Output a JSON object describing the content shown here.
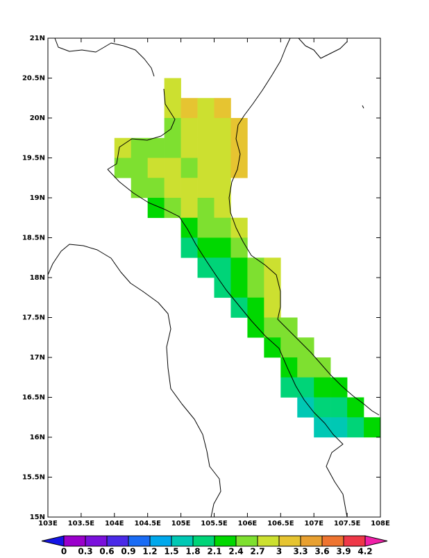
{
  "chart_data": {
    "type": "gridmap",
    "xlim": [
      103,
      108
    ],
    "ylim": [
      15,
      21
    ],
    "xticks": [
      {
        "value": 103,
        "label": "103E"
      },
      {
        "value": 103.5,
        "label": "103.5E"
      },
      {
        "value": 104,
        "label": "104E"
      },
      {
        "value": 104.5,
        "label": "104.5E"
      },
      {
        "value": 105,
        "label": "105E"
      },
      {
        "value": 105.5,
        "label": "105.5E"
      },
      {
        "value": 106,
        "label": "106E"
      },
      {
        "value": 106.5,
        "label": "106.5E"
      },
      {
        "value": 107,
        "label": "107E"
      },
      {
        "value": 107.5,
        "label": "107.5E"
      },
      {
        "value": 108,
        "label": "108E"
      }
    ],
    "yticks": [
      {
        "value": 15,
        "label": "15N"
      },
      {
        "value": 15.5,
        "label": "15.5N"
      },
      {
        "value": 16,
        "label": "16N"
      },
      {
        "value": 16.5,
        "label": "16.5N"
      },
      {
        "value": 17,
        "label": "17N"
      },
      {
        "value": 17.5,
        "label": "17.5N"
      },
      {
        "value": 18,
        "label": "18N"
      },
      {
        "value": 18.5,
        "label": "18.5N"
      },
      {
        "value": 19,
        "label": "19N"
      },
      {
        "value": 19.5,
        "label": "19.5N"
      },
      {
        "value": 20,
        "label": "20N"
      },
      {
        "value": 20.5,
        "label": "20.5N"
      },
      {
        "value": 21,
        "label": "21N"
      }
    ],
    "cells": [
      [
        104.75,
        20.25,
        2.85
      ],
      [
        104.75,
        20.0,
        2.85
      ],
      [
        105.0,
        20.0,
        3.15
      ],
      [
        105.25,
        20.0,
        2.85
      ],
      [
        105.5,
        20.0,
        3.15
      ],
      [
        104.75,
        19.75,
        2.55
      ],
      [
        105.0,
        19.75,
        2.85
      ],
      [
        105.25,
        19.75,
        2.85
      ],
      [
        105.5,
        19.75,
        2.85
      ],
      [
        105.75,
        19.75,
        3.15
      ],
      [
        104.0,
        19.5,
        2.85
      ],
      [
        104.25,
        19.5,
        2.55
      ],
      [
        104.5,
        19.5,
        2.55
      ],
      [
        104.75,
        19.5,
        2.55
      ],
      [
        105.0,
        19.5,
        2.85
      ],
      [
        105.25,
        19.5,
        2.85
      ],
      [
        105.5,
        19.5,
        2.85
      ],
      [
        105.75,
        19.5,
        3.15
      ],
      [
        104.0,
        19.25,
        2.55
      ],
      [
        104.25,
        19.25,
        2.55
      ],
      [
        104.5,
        19.25,
        2.85
      ],
      [
        104.75,
        19.25,
        2.85
      ],
      [
        105.0,
        19.25,
        2.55
      ],
      [
        105.25,
        19.25,
        2.85
      ],
      [
        105.5,
        19.25,
        2.85
      ],
      [
        105.75,
        19.25,
        3.15
      ],
      [
        104.25,
        19.0,
        2.55
      ],
      [
        104.5,
        19.0,
        2.55
      ],
      [
        104.75,
        19.0,
        2.85
      ],
      [
        105.0,
        19.0,
        2.85
      ],
      [
        105.25,
        19.0,
        2.85
      ],
      [
        105.5,
        19.0,
        2.85
      ],
      [
        104.5,
        18.75,
        2.25
      ],
      [
        104.75,
        18.75,
        2.55
      ],
      [
        105.0,
        18.75,
        2.85
      ],
      [
        105.25,
        18.75,
        2.55
      ],
      [
        105.5,
        18.75,
        2.85
      ],
      [
        105.0,
        18.5,
        2.25
      ],
      [
        105.25,
        18.5,
        2.55
      ],
      [
        105.5,
        18.5,
        2.55
      ],
      [
        105.75,
        18.5,
        2.85
      ],
      [
        105.0,
        18.25,
        1.95
      ],
      [
        105.25,
        18.25,
        2.25
      ],
      [
        105.5,
        18.25,
        2.25
      ],
      [
        105.75,
        18.25,
        2.55
      ],
      [
        105.25,
        18.0,
        1.95
      ],
      [
        105.5,
        18.0,
        1.95
      ],
      [
        105.75,
        18.0,
        2.25
      ],
      [
        106.0,
        18.0,
        2.55
      ],
      [
        106.25,
        18.0,
        2.85
      ],
      [
        105.5,
        17.75,
        1.95
      ],
      [
        105.75,
        17.75,
        2.25
      ],
      [
        106.0,
        17.75,
        2.55
      ],
      [
        106.25,
        17.75,
        2.85
      ],
      [
        105.75,
        17.5,
        1.95
      ],
      [
        106.0,
        17.5,
        2.25
      ],
      [
        106.25,
        17.5,
        2.85
      ],
      [
        106.0,
        17.25,
        2.25
      ],
      [
        106.25,
        17.25,
        2.55
      ],
      [
        106.5,
        17.25,
        2.55
      ],
      [
        106.25,
        17.0,
        2.25
      ],
      [
        106.5,
        17.0,
        2.55
      ],
      [
        106.75,
        17.0,
        2.55
      ],
      [
        106.5,
        16.75,
        2.25
      ],
      [
        106.75,
        16.75,
        2.55
      ],
      [
        107.0,
        16.75,
        2.55
      ],
      [
        106.5,
        16.5,
        1.95
      ],
      [
        106.75,
        16.5,
        1.95
      ],
      [
        107.0,
        16.5,
        2.25
      ],
      [
        107.25,
        16.5,
        2.25
      ],
      [
        106.75,
        16.25,
        1.65
      ],
      [
        107.0,
        16.25,
        1.95
      ],
      [
        107.25,
        16.25,
        1.95
      ],
      [
        107.5,
        16.25,
        2.25
      ],
      [
        107.0,
        16.0,
        1.65
      ],
      [
        107.25,
        16.0,
        1.65
      ],
      [
        107.5,
        16.0,
        1.95
      ],
      [
        107.75,
        16.0,
        2.25
      ]
    ],
    "colorbar": {
      "levels": [
        0,
        0.3,
        0.6,
        0.9,
        1.2,
        1.5,
        1.8,
        2.1,
        2.4,
        2.7,
        3,
        3.3,
        3.6,
        3.9,
        4.2
      ],
      "colors": [
        "#1414e6",
        "#9a00cc",
        "#7a10dc",
        "#4a2ae8",
        "#1a6cf5",
        "#00a8ec",
        "#00c8b4",
        "#00d478",
        "#00d800",
        "#7ee030",
        "#cce030",
        "#e6c431",
        "#e8a030",
        "#ee7430",
        "#ee3848",
        "#f020a8"
      ]
    }
  }
}
